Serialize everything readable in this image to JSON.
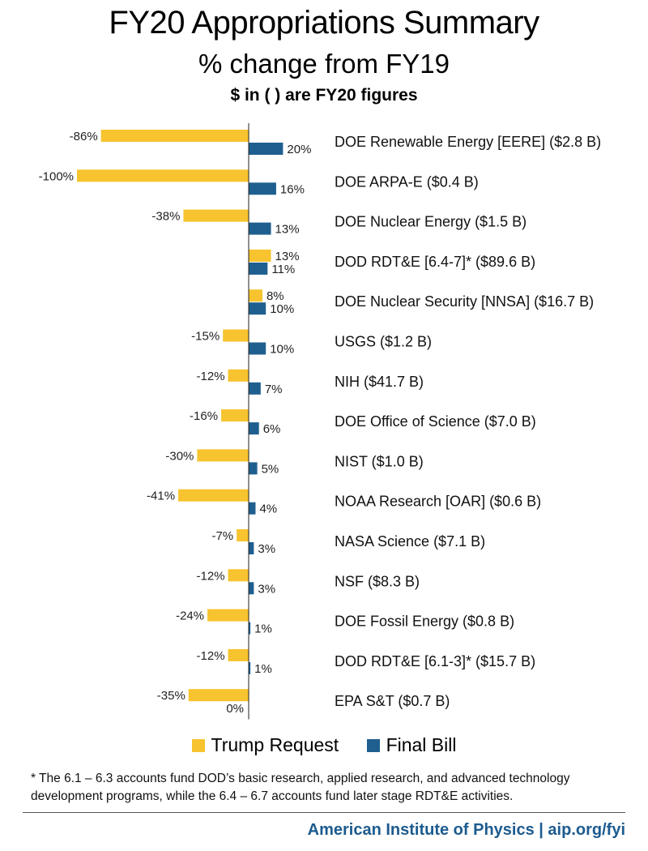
{
  "header": {
    "title": "FY20 Appropriations Summary",
    "subtitle": "% change from FY19",
    "note": "$ in ( ) are FY20 figures"
  },
  "colors": {
    "trump": "#f7c32e",
    "final": "#1f5f8f"
  },
  "legend": {
    "trump_label": "Trump Request",
    "final_label": "Final Bill"
  },
  "footnote": "* The 6.1 – 6.3 accounts fund DOD’s basic research, applied research, and advanced technology development programs, while the 6.4 – 6.7 accounts fund later stage RDT&E activities.",
  "credit": "American Institute of Physics | aip.org/fyi",
  "chart_data": {
    "type": "bar",
    "orientation": "horizontal",
    "categories": [
      "DOE Renewable Energy [EERE] ($2.8 B)",
      "DOE ARPA-E ($0.4 B)",
      "DOE Nuclear Energy ($1.5 B)",
      "DOD RDT&E [6.4-7]* ($89.6 B)",
      "DOE Nuclear Security [NNSA] ($16.7 B)",
      "USGS ($1.2 B)",
      "NIH ($41.7 B)",
      "DOE Office of Science ($7.0 B)",
      "NIST ($1.0 B)",
      "NOAA Research [OAR] ($0.6 B)",
      "NASA Science ($7.1 B)",
      "NSF ($8.3 B)",
      "DOE Fossil Energy ($0.8 B)",
      "DOD RDT&E [6.1-3]* ($15.7 B)",
      "EPA S&T ($0.7 B)"
    ],
    "series": [
      {
        "name": "Trump Request",
        "values": [
          -86,
          -100,
          -38,
          13,
          8,
          -15,
          -12,
          -16,
          -30,
          -41,
          -7,
          -12,
          -24,
          -12,
          -35
        ],
        "labels": [
          "-86%",
          "-100%",
          "-38%",
          "13%",
          "8%",
          "-15%",
          "-12%",
          "-16%",
          "-30%",
          "-41%",
          "-7%",
          "-12%",
          "-24%",
          "-12%",
          "-35%"
        ]
      },
      {
        "name": "Final Bill",
        "values": [
          20,
          16,
          13,
          11,
          10,
          10,
          7,
          6,
          5,
          4,
          3,
          3,
          1,
          1,
          0
        ],
        "labels": [
          "20%",
          "16%",
          "13%",
          "11%",
          "10%",
          "10%",
          "7%",
          "6%",
          "5%",
          "4%",
          "3%",
          "3%",
          "1%",
          "1%",
          "0%"
        ]
      }
    ],
    "xlim": [
      -100,
      20
    ],
    "grid": false,
    "legend_position": "bottom"
  }
}
